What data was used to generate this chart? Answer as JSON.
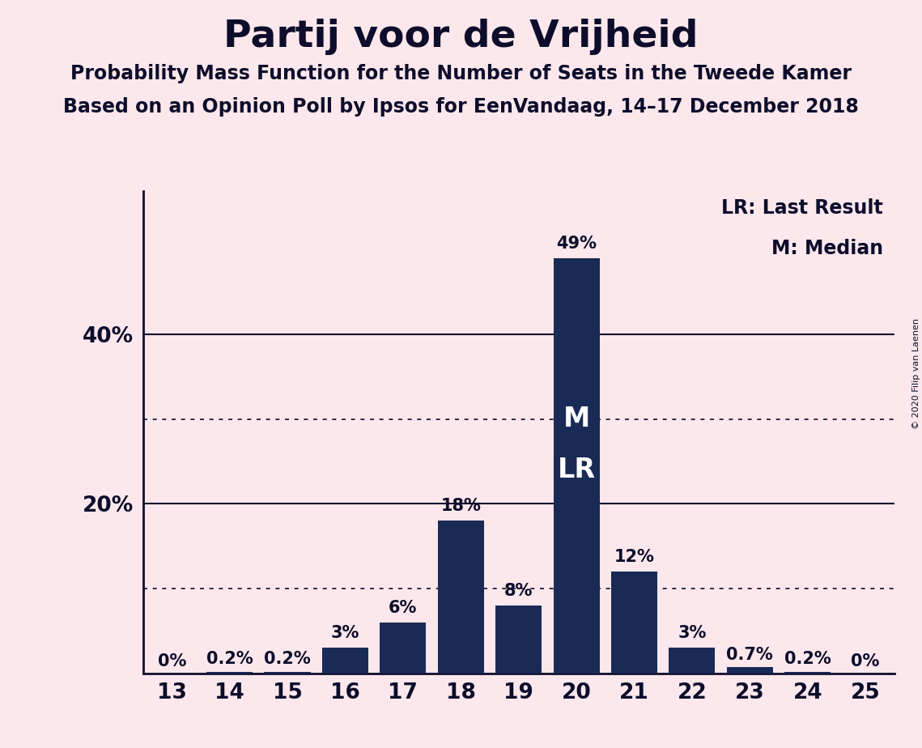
{
  "title": "Partij voor de Vrijheid",
  "subtitle1": "Probability Mass Function for the Number of Seats in the Tweede Kamer",
  "subtitle2": "Based on an Opinion Poll by Ipsos for EenVandaag, 14–17 December 2018",
  "copyright": "© 2020 Filip van Laenen",
  "seats": [
    13,
    14,
    15,
    16,
    17,
    18,
    19,
    20,
    21,
    22,
    23,
    24,
    25
  ],
  "probabilities": [
    0.0,
    0.2,
    0.2,
    3.0,
    6.0,
    18.0,
    8.0,
    49.0,
    12.0,
    3.0,
    0.7,
    0.2,
    0.0
  ],
  "labels": [
    "0%",
    "0.2%",
    "0.2%",
    "3%",
    "6%",
    "18%",
    "8%",
    "49%",
    "12%",
    "3%",
    "0.7%",
    "0.2%",
    "0%"
  ],
  "bar_color": "#192a56",
  "background_color": "#fce8ec",
  "text_color": "#0d0d2b",
  "solid_gridlines": [
    20,
    40
  ],
  "dotted_gridlines": [
    10,
    30
  ],
  "median_seat": 20,
  "lr_seat": 20,
  "legend_lr": "LR: Last Result",
  "legend_m": "M: Median",
  "ylim": [
    0,
    57
  ],
  "title_fontsize": 34,
  "subtitle_fontsize": 17,
  "tick_fontsize": 19,
  "label_fontsize": 15,
  "legend_fontsize": 17,
  "ml_fontsize": 24
}
